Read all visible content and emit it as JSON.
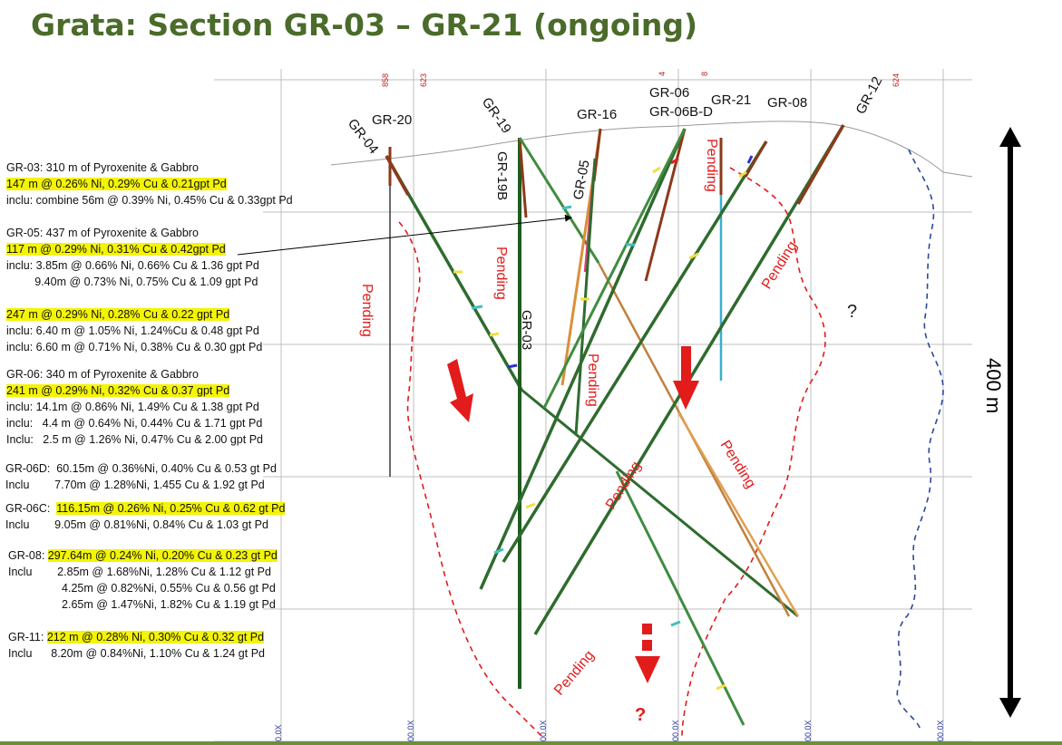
{
  "title": "Grata: Section GR-03 – GR-21 (ongoing)",
  "colors": {
    "title": "#4a6b2a",
    "highlight": "#f4f405",
    "pending": "#e21b1b",
    "contact_red": "#e21b1b",
    "contact_blue": "#2a4a9a",
    "arrow": "#000000"
  },
  "scale_label": "400 m",
  "unknown_label": "?",
  "pending_label": "Pending",
  "drillholes": [
    "GR-20",
    "GR-04",
    "GR-19",
    "GR-19B",
    "GR-16",
    "GR-05",
    "GR-06",
    "GR-06B-D",
    "GR-21",
    "GR-08",
    "GR-12",
    "GR-03"
  ],
  "grid_tick_labels_top": [
    "858",
    "623",
    "4",
    "8",
    "624"
  ],
  "grid_tick_labels_bottom": [
    "0.0X",
    "00.0X",
    "00.0X",
    "00.0X",
    "00.0X",
    "00.0X"
  ],
  "annotations": [
    {
      "lines": [
        {
          "text": "GR-03: 310 m of Pyroxenite & Gabbro",
          "hl": false
        },
        {
          "text": "147 m @ 0.26% Ni, 0.29% Cu & 0.21gpt Pd",
          "hl": true
        },
        {
          "text": "inclu: combine 56m @ 0.39% Ni, 0.45% Cu & 0.33gpt Pd",
          "hl": false
        }
      ]
    },
    {
      "lines": [
        {
          "text": "GR-05: 437 m of Pyroxenite & Gabbro",
          "hl": false
        },
        {
          "text": "117 m @ 0.29% Ni, 0.31% Cu & 0.42gpt Pd",
          "hl": true
        },
        {
          "text": "inclu: 3.85m @ 0.66% Ni, 0.66% Cu & 1.36 gpt Pd",
          "hl": false
        },
        {
          "text": "         9.40m @ 0.73% Ni, 0.75% Cu & 1.09 gpt Pd",
          "hl": false
        },
        {
          "text": "",
          "hl": false
        },
        {
          "text": "247 m @ 0.29% Ni, 0.28% Cu & 0.22 gpt Pd",
          "hl": true
        },
        {
          "text": "inclu: 6.40 m @ 1.05% Ni, 1.24%Cu & 0.48 gpt Pd",
          "hl": false
        },
        {
          "text": "inclu: 6.60 m @ 0.71% Ni, 0.38% Cu & 0.30 gpt Pd",
          "hl": false
        }
      ]
    },
    {
      "lines": [
        {
          "text": "GR-06: 340 m of Pyroxenite & Gabbro",
          "hl": false
        },
        {
          "text": "241 m @ 0.29% Ni, 0.32% Cu & 0.37 gpt Pd",
          "hl": true
        },
        {
          "text": "inclu: 14.1m @ 0.86% Ni, 1.49% Cu & 1.38 gpt Pd",
          "hl": false
        },
        {
          "text": "inclu:   4.4 m @ 0.64% Ni, 0.44% Cu & 1.71 gpt Pd",
          "hl": false
        },
        {
          "text": "Inclu:   2.5 m @ 1.26% Ni, 0.47% Cu & 2.00 gpt Pd",
          "hl": false
        }
      ]
    },
    {
      "lines": [
        {
          "text": "GR-06D:  60.15m @ 0.36%Ni, 0.40% Cu & 0.53 gt Pd",
          "hl": false
        },
        {
          "text": "Inclu        7.70m @ 1.28%Ni, 1.455 Cu & 1.92 gt Pd",
          "hl": false
        }
      ]
    },
    {
      "lines": [
        {
          "prefix": "GR-06C:  ",
          "text": "116.15m @ 0.26% Ni, 0.25% Cu & 0.62 gt Pd",
          "hl": true
        },
        {
          "text": "Inclu        9.05m @ 0.81%Ni, 0.84% Cu & 1.03 gt Pd",
          "hl": false
        }
      ]
    },
    {
      "lines": [
        {
          "prefix": "GR-08: ",
          "text": "297.64m @ 0.24% Ni, 0.20% Cu & 0.23 gt Pd",
          "hl": true
        },
        {
          "text": "Inclu        2.85m @ 1.68%Ni, 1.28% Cu & 1.12 gt Pd",
          "hl": false
        },
        {
          "text": "                 4.25m @ 0.82%Ni, 0.55% Cu & 0.56 gt Pd",
          "hl": false
        },
        {
          "text": "                 2.65m @ 1.47%Ni, 1.82% Cu & 1.19 gt Pd",
          "hl": false
        }
      ]
    },
    {
      "lines": [
        {
          "prefix": "GR-11: ",
          "text": "212 m @ 0.28% Ni, 0.30% Cu & 0.32 gt Pd",
          "hl": true
        },
        {
          "text": "Inclu      8.20m @ 0.84%Ni, 1.10% Cu & 1.24 gt Pd",
          "hl": false
        }
      ]
    }
  ]
}
